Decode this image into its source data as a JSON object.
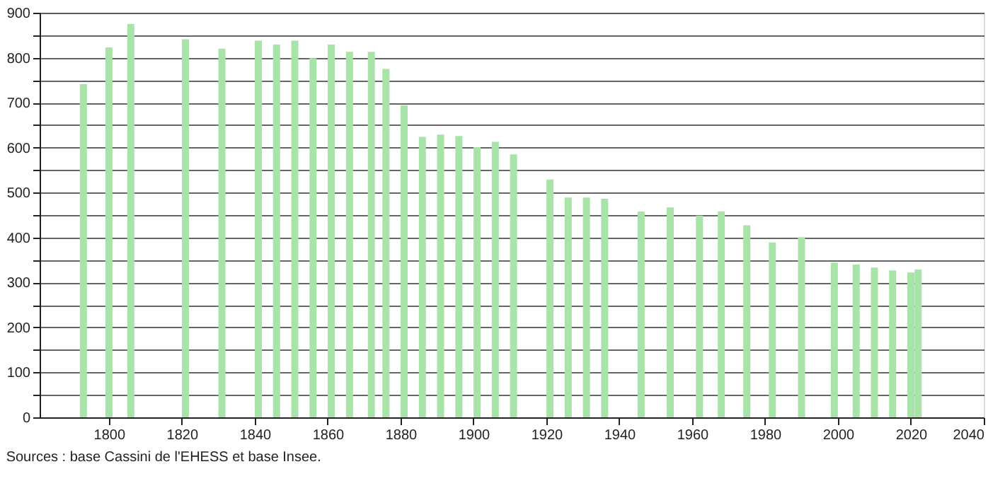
{
  "chart_data": {
    "type": "bar",
    "x": [
      1793,
      1800,
      1806,
      1821,
      1831,
      1841,
      1846,
      1851,
      1856,
      1861,
      1866,
      1872,
      1876,
      1881,
      1886,
      1891,
      1896,
      1901,
      1906,
      1911,
      1921,
      1926,
      1931,
      1936,
      1946,
      1954,
      1962,
      1968,
      1975,
      1982,
      1990,
      1999,
      2005,
      2010,
      2015,
      2020,
      2022
    ],
    "values": [
      741,
      823,
      875,
      841,
      820,
      838,
      829,
      838,
      799,
      829,
      813,
      813,
      775,
      694,
      624,
      629,
      626,
      601,
      613,
      585,
      529,
      489,
      489,
      486,
      458,
      467,
      449,
      458,
      427,
      389,
      401,
      344,
      340,
      333,
      327,
      322,
      329
    ],
    "color": "#a8e4a8",
    "xlim": [
      1781,
      2040
    ],
    "xticks": [
      1800,
      1820,
      1840,
      1860,
      1880,
      1900,
      1920,
      1940,
      1960,
      1980,
      2000,
      2020,
      2040
    ],
    "ylim": [
      0,
      900
    ],
    "yticks": [
      0,
      {
        "value": 50,
        "label": null
      },
      100,
      {
        "value": 150,
        "label": null
      },
      200,
      {
        "value": 250,
        "label": null
      },
      300,
      {
        "value": 350,
        "label": null
      },
      400,
      {
        "value": 450,
        "label": null
      },
      500,
      {
        "value": 550,
        "label": null
      },
      600,
      {
        "value": 650,
        "label": null
      },
      700,
      {
        "value": 750,
        "label": null
      },
      800,
      {
        "value": 850,
        "label": null
      },
      900
    ],
    "grid": "y",
    "annotations": [
      "Sources : base Cassini de l'EHESS et base Insee."
    ]
  }
}
